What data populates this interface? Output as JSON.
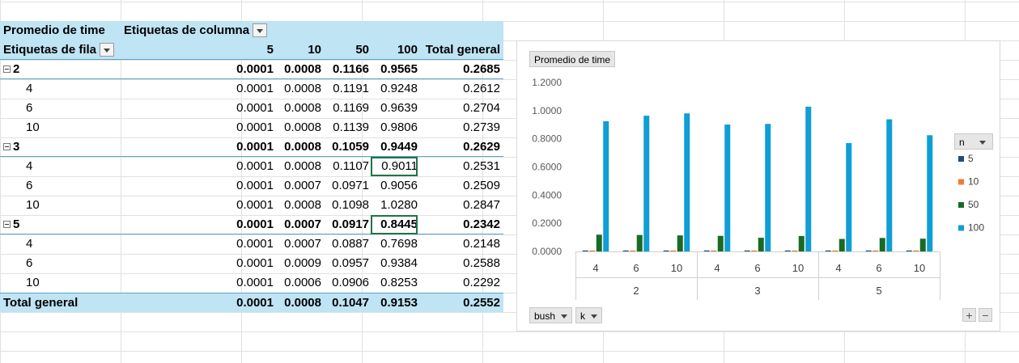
{
  "pivot": {
    "header1": {
      "values_label": "Promedio de time",
      "columns_label": "Etiquetas de columna"
    },
    "header2": {
      "rows_label": "Etiquetas de fila",
      "col_5": "5",
      "col_10": "10",
      "col_50": "50",
      "col_100": "100",
      "col_total": "Total general"
    },
    "rows": [
      {
        "kind": "group",
        "label": "2",
        "v5": "0.0001",
        "v10": "0.0008",
        "v50": "0.1166",
        "v100": "0.9565",
        "total": "0.2685"
      },
      {
        "kind": "sub",
        "label": "4",
        "v5": "0.0001",
        "v10": "0.0008",
        "v50": "0.1191",
        "v100": "0.9248",
        "total": "0.2612"
      },
      {
        "kind": "sub",
        "label": "6",
        "v5": "0.0001",
        "v10": "0.0008",
        "v50": "0.1169",
        "v100": "0.9639",
        "total": "0.2704"
      },
      {
        "kind": "sub",
        "label": "10",
        "v5": "0.0001",
        "v10": "0.0008",
        "v50": "0.1139",
        "v100": "0.9806",
        "total": "0.2739"
      },
      {
        "kind": "group",
        "label": "3",
        "v5": "0.0001",
        "v10": "0.0008",
        "v50": "0.1059",
        "v100": "0.9449",
        "total": "0.2629"
      },
      {
        "kind": "sub",
        "label": "4",
        "v5": "0.0001",
        "v10": "0.0008",
        "v50": "0.1107",
        "v100": "0.9011",
        "total": "0.2531"
      },
      {
        "kind": "sub",
        "label": "6",
        "v5": "0.0001",
        "v10": "0.0007",
        "v50": "0.0971",
        "v100": "0.9056",
        "total": "0.2509"
      },
      {
        "kind": "sub",
        "label": "10",
        "v5": "0.0001",
        "v10": "0.0008",
        "v50": "0.1098",
        "v100": "1.0280",
        "total": "0.2847"
      },
      {
        "kind": "group",
        "label": "5",
        "v5": "0.0001",
        "v10": "0.0007",
        "v50": "0.0917",
        "v100": "0.8445",
        "total": "0.2342"
      },
      {
        "kind": "sub",
        "label": "4",
        "v5": "0.0001",
        "v10": "0.0007",
        "v50": "0.0887",
        "v100": "0.7698",
        "total": "0.2148"
      },
      {
        "kind": "sub",
        "label": "6",
        "v5": "0.0001",
        "v10": "0.0009",
        "v50": "0.0957",
        "v100": "0.9384",
        "total": "0.2588"
      },
      {
        "kind": "sub",
        "label": "10",
        "v5": "0.0001",
        "v10": "0.0006",
        "v50": "0.0906",
        "v100": "0.8253",
        "total": "0.2292"
      }
    ],
    "total_row": {
      "label": "Total general",
      "v5": "0.0001",
      "v10": "0.0008",
      "v50": "0.1047",
      "v100": "0.9153",
      "total": "0.2552"
    },
    "selected_cell": "5.v100"
  },
  "chart": {
    "value_button": "Promedio de time",
    "legend_button": "n",
    "axis_buttons": [
      "bush",
      "k"
    ],
    "plus_label": "+",
    "minus_label": "−",
    "y_ticks": [
      "1.2000",
      "1.0000",
      "0.8000",
      "0.6000",
      "0.4000",
      "0.2000",
      "0.0000"
    ]
  },
  "chart_data": {
    "type": "bar",
    "title": "",
    "xlabel": "",
    "ylabel": "",
    "ylim": [
      0,
      1.2
    ],
    "legend_title": "n",
    "legend_position": "right",
    "grid": false,
    "groups": [
      {
        "label": "2",
        "categories": [
          "4",
          "6",
          "10"
        ]
      },
      {
        "label": "3",
        "categories": [
          "4",
          "6",
          "10"
        ]
      },
      {
        "label": "5",
        "categories": [
          "4",
          "6",
          "10"
        ]
      }
    ],
    "series": [
      {
        "name": "5",
        "color": "#1f4e79",
        "values": [
          0.0001,
          0.0001,
          0.0001,
          0.0001,
          0.0001,
          0.0001,
          0.0001,
          0.0001,
          0.0001
        ]
      },
      {
        "name": "10",
        "color": "#ed7d31",
        "values": [
          0.0008,
          0.0008,
          0.0008,
          0.0008,
          0.0007,
          0.0008,
          0.0007,
          0.0009,
          0.0006
        ]
      },
      {
        "name": "50",
        "color": "#196b24",
        "values": [
          0.1191,
          0.1169,
          0.1139,
          0.1107,
          0.0971,
          0.1098,
          0.0887,
          0.0957,
          0.0906
        ]
      },
      {
        "name": "100",
        "color": "#0f9ed5",
        "values": [
          0.9248,
          0.9639,
          0.9806,
          0.9011,
          0.9056,
          1.028,
          0.7698,
          0.9384,
          0.8253
        ]
      }
    ]
  }
}
